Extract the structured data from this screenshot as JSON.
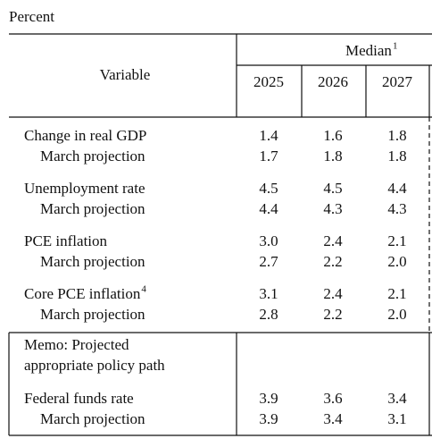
{
  "unit": "Percent",
  "header": {
    "variable": "Variable",
    "median": {
      "text": "Median",
      "note": "1"
    },
    "years": [
      "2025",
      "2026",
      "2027"
    ]
  },
  "groups": [
    {
      "label": "Change in real GDP",
      "values": [
        "1.4",
        "1.6",
        "1.8"
      ],
      "march": {
        "label": "March projection",
        "values": [
          "1.7",
          "1.8",
          "1.8"
        ]
      }
    },
    {
      "label": "Unemployment rate",
      "values": [
        "4.5",
        "4.5",
        "4.4"
      ],
      "march": {
        "label": "March projection",
        "values": [
          "4.4",
          "4.3",
          "4.3"
        ]
      }
    },
    {
      "label": "PCE inflation",
      "values": [
        "3.0",
        "2.4",
        "2.1"
      ],
      "march": {
        "label": "March projection",
        "values": [
          "2.7",
          "2.2",
          "2.0"
        ]
      }
    },
    {
      "label": "Core PCE inflation",
      "note": "4",
      "values": [
        "3.1",
        "2.4",
        "2.1"
      ],
      "march": {
        "label": "March projection",
        "values": [
          "2.8",
          "2.2",
          "2.0"
        ]
      }
    }
  ],
  "memo": {
    "lines": [
      "Memo: Projected",
      "appropriate policy path"
    ],
    "group": {
      "label": "Federal funds rate",
      "values": [
        "3.9",
        "3.6",
        "3.4"
      ],
      "march": {
        "label": "March projection",
        "values": [
          "3.9",
          "3.4",
          "3.1"
        ]
      }
    }
  }
}
